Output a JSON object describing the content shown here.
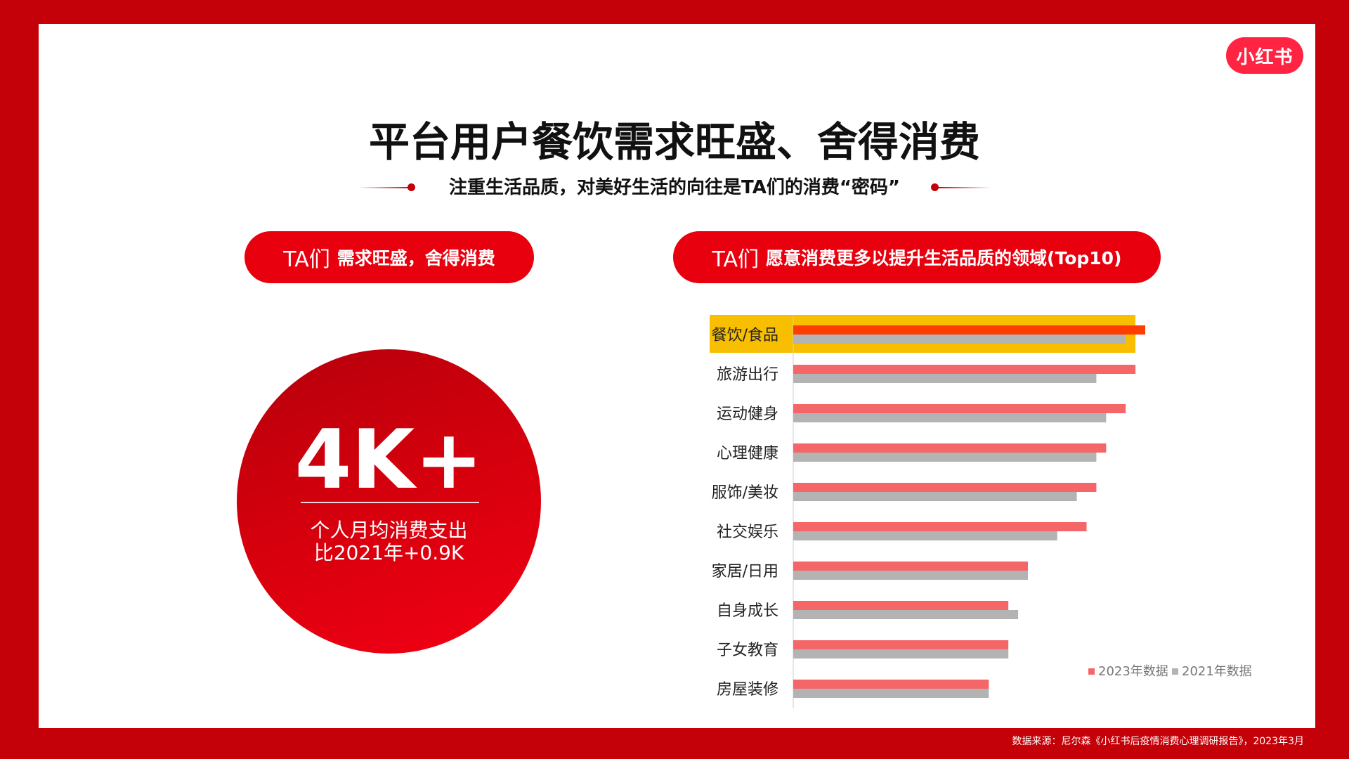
{
  "logo": "小红书",
  "title": "平台用户餐饮需求旺盛、舍得消费",
  "subtitle": "注重生活品质，对美好生活的向往是TA们的消费“密码”",
  "left_panel": {
    "pill_prefix": "TA们",
    "pill_text": "需求旺盛，舍得消费",
    "big_number": "4K+",
    "caption_line1": "个人月均消费支出",
    "caption_line2": "比2021年+0.9K"
  },
  "right_panel": {
    "pill_prefix": "TA们",
    "pill_text": "愿意消费更多以提升生活品质的领域(Top10)"
  },
  "colors": {
    "brand_red": "#e8000e",
    "bar_2023": "#f56668",
    "bar_2021": "#b3b3b3",
    "highlight": "#f8bf00",
    "highlight_bar_2023": "#ff3d00"
  },
  "chart_data": {
    "type": "bar",
    "orientation": "horizontal",
    "categories": [
      "餐饮/食品",
      "旅游出行",
      "运动健身",
      "心理健康",
      "服饰/美妆",
      "社交娱乐",
      "家居/日用",
      "自身成长",
      "子女教育",
      "房屋装修"
    ],
    "series": [
      {
        "name": "2023年数据",
        "values": [
          36,
          35,
          34,
          32,
          31,
          30,
          24,
          22,
          22,
          20
        ]
      },
      {
        "name": "2021年数据",
        "values": [
          34,
          31,
          32,
          31,
          29,
          27,
          24,
          23,
          22,
          20
        ]
      }
    ],
    "highlighted_category": "餐饮/食品",
    "legend_position": "bottom-right",
    "grid": false,
    "xlim": [
      0,
      36
    ]
  },
  "source": "数据来源：尼尔森《小红书后疫情消费心理调研报告》，2023年3月"
}
